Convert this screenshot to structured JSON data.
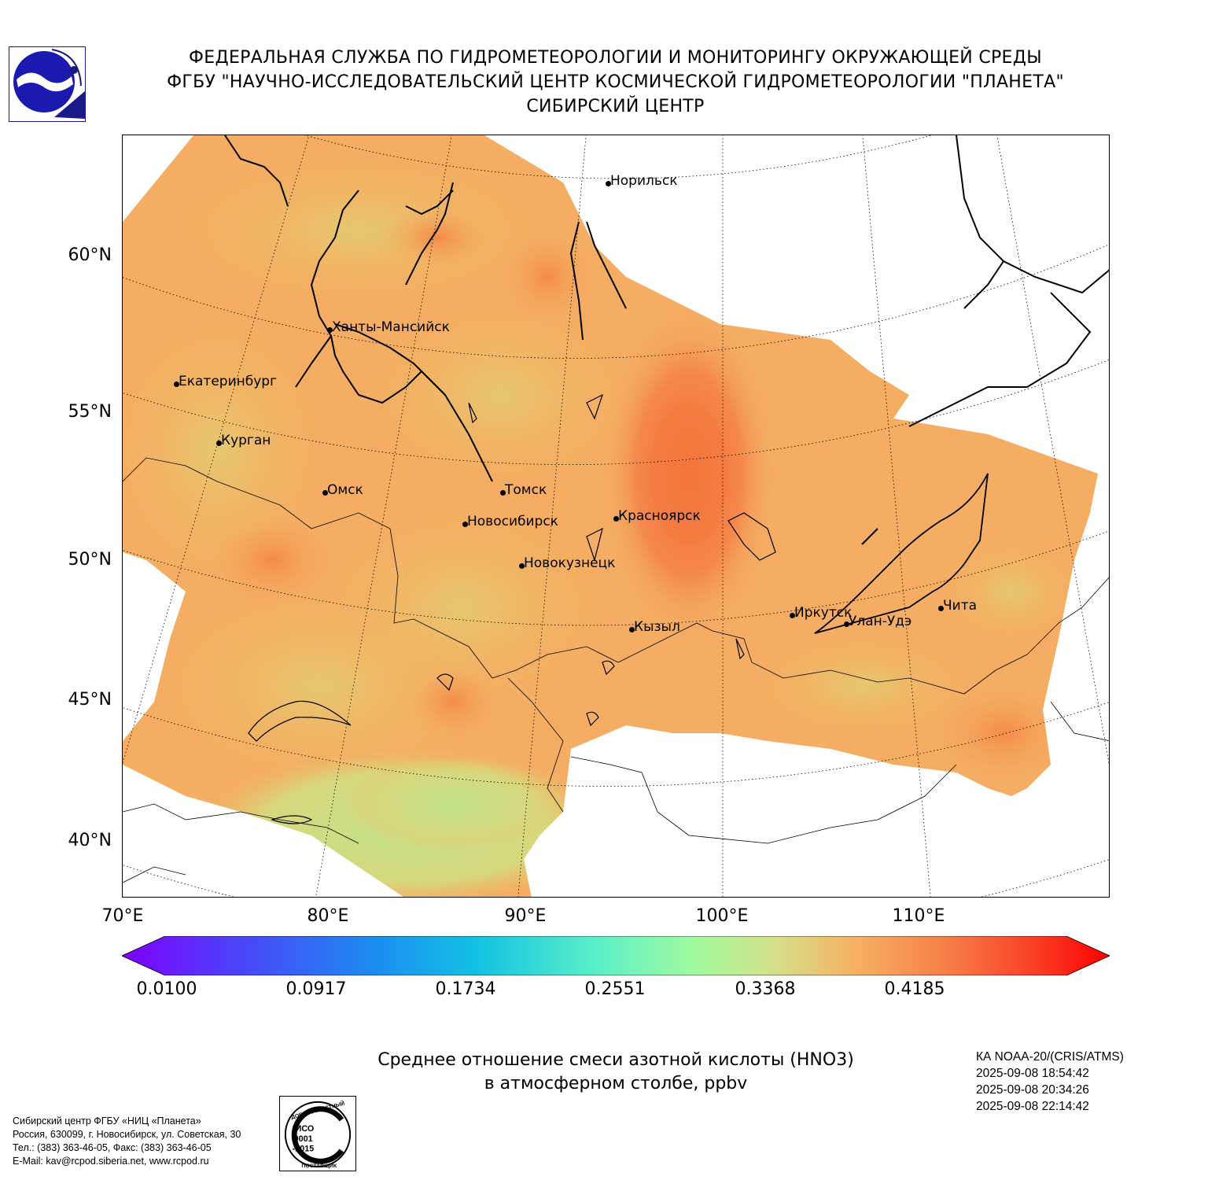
{
  "header": {
    "line1": "ФЕДЕРАЛЬНАЯ СЛУЖБА ПО ГИДРОМЕТЕОРОЛОГИИ И МОНИТОРИНГУ ОКРУЖАЮЩЕЙ СРЕДЫ",
    "line2": "ФГБУ \"НАУЧНО-ИССЛЕДОВАТЕЛЬСКИЙ ЦЕНТР КОСМИЧЕСКОЙ ГИДРОМЕТЕОРОЛОГИИ \"ПЛАНЕТА\"",
    "line3": "СИБИРСКИЙ ЦЕНТР"
  },
  "map": {
    "lat_labels": [
      "60°N",
      "55°N",
      "50°N",
      "45°N",
      "40°N"
    ],
    "lon_labels": [
      "70°E",
      "80°E",
      "90°E",
      "100°E",
      "110°E"
    ],
    "cities": {
      "norilsk": "Норильск",
      "khanty": "Ханты-Мансийск",
      "ekb": "Екатеринбург",
      "kurgan": "Курган",
      "omsk": "Омск",
      "tomsk": "Томск",
      "novosibirsk": "Новосибирск",
      "krasnoyarsk": "Красноярск",
      "novokuznetsk": "Новокузнецк",
      "kyzyl": "Кызыл",
      "irkutsk": "Иркутск",
      "ulanude": "Улан-Удэ",
      "chita": "Чита"
    },
    "colors": {
      "field_main": "#f5a960",
      "field_light": "#e9c56f",
      "field_dark": "#f58a48",
      "field_peak": "#f37a40",
      "field_green": "#c8e085"
    }
  },
  "colorbar": {
    "ticks": [
      "0.0100",
      "0.0917",
      "0.1734",
      "0.2551",
      "0.3368",
      "0.4185"
    ],
    "min_color": "#7f00ff",
    "max_color": "#ff0000"
  },
  "caption": {
    "line1": "Среднее отношение смеси азотной кислоты (HNO3)",
    "line2": "в атмосферном столбе, ppbv"
  },
  "satellite": {
    "name": "КА NOAA-20/(CRIS/ATMS)",
    "times": [
      "2025-09-08 18:54:42",
      "2025-09-08 20:34:26",
      "2025-09-08 22:14:42"
    ]
  },
  "footer": {
    "org": "Сибирский центр ФГБУ «НИЦ «Планета»",
    "address": "Россия, 630099, г. Новосибирск, ул. Советская, 30",
    "phone": "Тел.: (383) 363-46-05, Факс: (383) 363-46-05",
    "email": "E-Mail: kav@rcpod.siberia.net, www.rcpod.ru"
  },
  "iso_badge": {
    "top": "ДОБРОСОВЕСТНЫЙ",
    "iso": "ИСО",
    "num": "9001",
    "year": "-2015",
    "bottom": "ПОСТАВЩИК"
  }
}
